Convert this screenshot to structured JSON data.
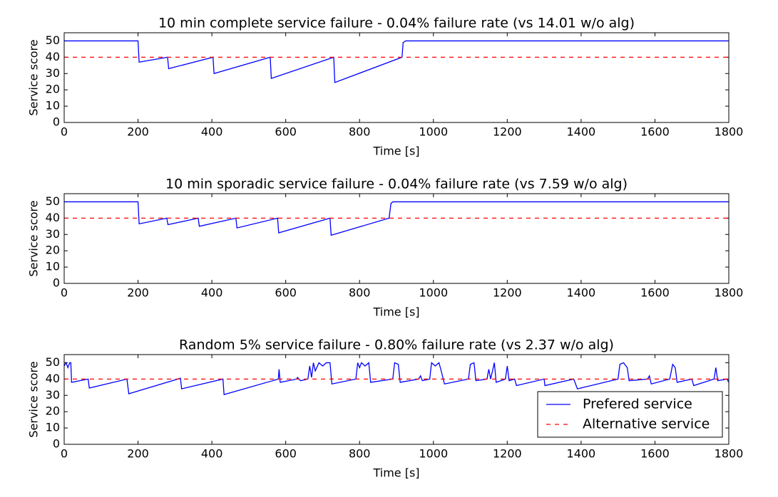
{
  "chart_data": [
    {
      "type": "line",
      "title": "10 min complete service failure - 0.04% failure rate (vs 14.01 w/o alg)",
      "xlabel": "Time [s]",
      "ylabel": "Service score",
      "xlim": [
        0,
        1800
      ],
      "ylim": [
        0,
        55
      ],
      "xticks": [
        0,
        200,
        400,
        600,
        800,
        1000,
        1200,
        1400,
        1600,
        1800
      ],
      "yticks": [
        0,
        10,
        20,
        30,
        40,
        50
      ],
      "series": [
        {
          "color": "#0000ff",
          "dashed": false,
          "x": [
            0,
            200,
            203,
            280,
            283,
            403,
            406,
            558,
            561,
            730,
            733,
            915,
            918,
            925,
            1800
          ],
          "values": [
            50,
            50,
            37,
            40,
            33,
            40,
            30,
            40,
            27,
            40,
            24.5,
            40,
            49,
            50,
            50
          ]
        },
        {
          "color": "#ff0000",
          "dashed": true,
          "x": [
            0,
            1800
          ],
          "values": [
            40,
            40
          ]
        }
      ]
    },
    {
      "type": "line",
      "title": "10 min sporadic service failure - 0.04% failure rate (vs 7.59 w/o alg)",
      "xlabel": "Time [s]",
      "ylabel": "Service score",
      "xlim": [
        0,
        1800
      ],
      "ylim": [
        0,
        55
      ],
      "xticks": [
        0,
        200,
        400,
        600,
        800,
        1000,
        1200,
        1400,
        1600,
        1800
      ],
      "yticks": [
        0,
        10,
        20,
        30,
        40,
        50
      ],
      "series": [
        {
          "color": "#0000ff",
          "dashed": false,
          "x": [
            0,
            200,
            203,
            278,
            281,
            363,
            366,
            465,
            468,
            578,
            581,
            720,
            723,
            880,
            885,
            890,
            1800
          ],
          "values": [
            50,
            50,
            36.5,
            40,
            36,
            40,
            35,
            40,
            34,
            40,
            31,
            40,
            29.5,
            40,
            49,
            50,
            50
          ]
        },
        {
          "color": "#ff0000",
          "dashed": true,
          "x": [
            0,
            1800
          ],
          "values": [
            40,
            40
          ]
        }
      ]
    },
    {
      "type": "line",
      "title": "Random 5% service failure - 0.80% failure rate (vs 2.37 w/o alg)",
      "xlabel": "Time [s]",
      "ylabel": "Service score",
      "xlim": [
        0,
        1800
      ],
      "ylim": [
        0,
        55
      ],
      "xticks": [
        0,
        200,
        400,
        600,
        800,
        1000,
        1200,
        1400,
        1600,
        1800
      ],
      "yticks": [
        0,
        10,
        20,
        30,
        40,
        50
      ],
      "legend": "lower right",
      "series": [
        {
          "name": "Prefered service",
          "color": "#0000ff",
          "dashed": false,
          "x": [
            0,
            5,
            10,
            15,
            18,
            20,
            65,
            68,
            170,
            175,
            315,
            318,
            430,
            433,
            580,
            582,
            585,
            630,
            632,
            640,
            660,
            665,
            670,
            675,
            680,
            690,
            700,
            710,
            720,
            725,
            790,
            795,
            800,
            805,
            815,
            825,
            830,
            890,
            895,
            905,
            910,
            960,
            965,
            970,
            990,
            995,
            1005,
            1015,
            1020,
            1030,
            1095,
            1100,
            1110,
            1115,
            1145,
            1150,
            1155,
            1165,
            1170,
            1195,
            1200,
            1205,
            1220,
            1225,
            1300,
            1302,
            1380,
            1390,
            1500,
            1505,
            1515,
            1525,
            1530,
            1580,
            1585,
            1590,
            1640,
            1648,
            1655,
            1660,
            1700,
            1705,
            1760,
            1765,
            1770,
            1795,
            1800
          ],
          "values": [
            48,
            50,
            47,
            50,
            50,
            38,
            40,
            34.5,
            40,
            31,
            40.5,
            34,
            40,
            30.5,
            40,
            46,
            38,
            40,
            41,
            39,
            40,
            48,
            41,
            50,
            45,
            50,
            48,
            50,
            50,
            37,
            40,
            50,
            47,
            50,
            48,
            50,
            38,
            40,
            50,
            49,
            38,
            40,
            42,
            39,
            40,
            50,
            48,
            50,
            46,
            37,
            40,
            49,
            50,
            39,
            40,
            46,
            40,
            50,
            38,
            40,
            48,
            39,
            40,
            36,
            40,
            36,
            40,
            34,
            40,
            49,
            50,
            47,
            39,
            40,
            42,
            37,
            40,
            49,
            47,
            38,
            40,
            36,
            40,
            47,
            39,
            40,
            38
          ]
        },
        {
          "name": "Alternative service",
          "color": "#ff0000",
          "dashed": true,
          "x": [
            0,
            1800
          ],
          "values": [
            40,
            40
          ]
        }
      ]
    }
  ]
}
